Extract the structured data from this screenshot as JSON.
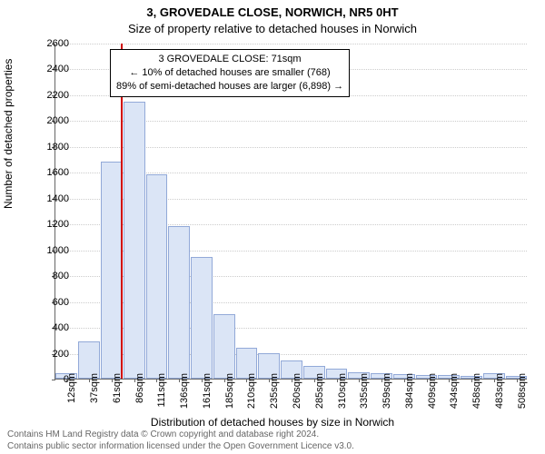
{
  "titles": {
    "line1": "3, GROVEDALE CLOSE, NORWICH, NR5 0HT",
    "line2": "Size of property relative to detached houses in Norwich"
  },
  "chart": {
    "type": "histogram",
    "background_color": "#ffffff",
    "bar_fill": "#dbe5f6",
    "bar_border": "#92a9d8",
    "grid_color": "#cccccc",
    "axis_color": "#666666",
    "marker_color": "#d00000",
    "ylim": [
      0,
      2600
    ],
    "ytick_step": 200,
    "categories": [
      "12sqm",
      "37sqm",
      "61sqm",
      "86sqm",
      "111sqm",
      "136sqm",
      "161sqm",
      "185sqm",
      "210sqm",
      "235sqm",
      "260sqm",
      "285sqm",
      "310sqm",
      "335sqm",
      "359sqm",
      "384sqm",
      "409sqm",
      "434sqm",
      "458sqm",
      "483sqm",
      "508sqm"
    ],
    "values": [
      40,
      290,
      1680,
      2140,
      1580,
      1180,
      940,
      500,
      240,
      200,
      140,
      100,
      80,
      50,
      40,
      35,
      30,
      25,
      20,
      40,
      20
    ],
    "marker_category_index": 2.4,
    "label_fontsize": 11,
    "axis_label_fontsize": 12,
    "title_fontsize": 13
  },
  "info_box": {
    "line1": "3 GROVEDALE CLOSE: 71sqm",
    "line2": "← 10% of detached houses are smaller (768)",
    "line3": "89% of semi-detached houses are larger (6,898) →"
  },
  "axis_labels": {
    "y": "Number of detached properties",
    "x": "Distribution of detached houses by size in Norwich"
  },
  "footer": {
    "line1": "Contains HM Land Registry data © Crown copyright and database right 2024.",
    "line2": "Contains public sector information licensed under the Open Government Licence v3.0."
  }
}
